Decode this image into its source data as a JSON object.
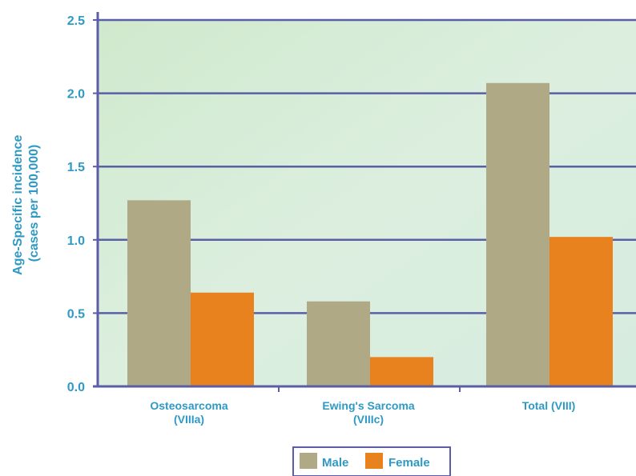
{
  "chart_data": {
    "type": "bar",
    "title": "",
    "xlabel": "",
    "ylabel_lines": [
      "Age-Specific incidence",
      "(cases per 100,000)"
    ],
    "ylim": [
      0,
      2.5
    ],
    "yticks": [
      "0.0",
      "0.5",
      "1.0",
      "1.5",
      "2.0",
      "2.5"
    ],
    "categories": [
      [
        "Osteosarcoma",
        "(VIIIa)"
      ],
      [
        "Ewing's Sarcoma",
        "(VIIIc)"
      ],
      [
        "Total (VIII)"
      ]
    ],
    "series": [
      {
        "name": "Male",
        "color": "#afa985",
        "values": [
          1.27,
          0.58,
          2.07
        ]
      },
      {
        "name": "Female",
        "color": "#e8821e",
        "values": [
          0.64,
          0.2,
          1.02
        ]
      }
    ],
    "grid": true,
    "legend_position": "bottom-center"
  },
  "colors": {
    "axis": "#5b5ea6",
    "text": "#2e9ac4",
    "plot_bg_top": "#d3ead1",
    "plot_bg_bottom": "#dbeee3"
  }
}
